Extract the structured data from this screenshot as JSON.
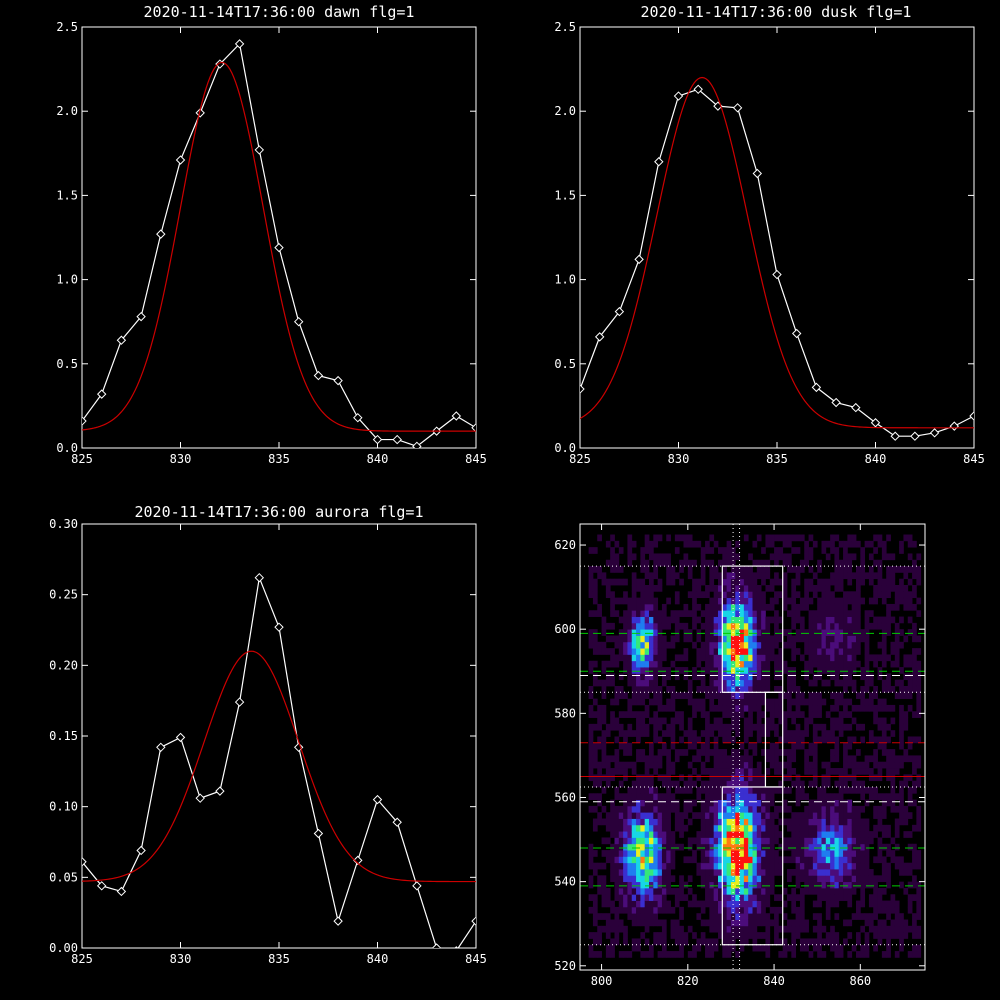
{
  "chart_data": [
    {
      "type": "line",
      "title": "2020-11-14T17:36:00 dawn flg=1",
      "xlim": [
        825,
        845
      ],
      "ylim": [
        0,
        2.5
      ],
      "xticks": [
        "825",
        "830",
        "835",
        "840",
        "845"
      ],
      "yticks": [
        "0.0",
        "0.5",
        "1.0",
        "1.5",
        "2.0",
        "2.5"
      ],
      "xticks_v": [
        825,
        830,
        835,
        840,
        845
      ],
      "yticks_v": [
        0,
        0.5,
        1.0,
        1.5,
        2.0,
        2.5
      ],
      "series": [
        {
          "color": "#ffffff",
          "markers": "diamond",
          "x": [
            825,
            826,
            827,
            828,
            829,
            830,
            831,
            832,
            833,
            834,
            835,
            836,
            837,
            838,
            839,
            840,
            841,
            842,
            843,
            844,
            845
          ],
          "y": [
            0.16,
            0.32,
            0.64,
            0.78,
            1.27,
            1.71,
            1.99,
            2.28,
            2.4,
            1.77,
            1.19,
            0.75,
            0.43,
            0.4,
            0.18,
            0.05,
            0.05,
            0.01,
            0.1,
            0.19,
            0.12
          ]
        },
        {
          "color": "#cc0000",
          "markers": "none",
          "fit": "gaussian",
          "amplitude": 2.19,
          "center": 832.1,
          "sigma": 2.1,
          "offset": 0.1
        }
      ]
    },
    {
      "type": "line",
      "title": "2020-11-14T17:36:00 dusk flg=1",
      "xlim": [
        825,
        845
      ],
      "ylim": [
        0,
        2.5
      ],
      "xticks": [
        "825",
        "830",
        "835",
        "840",
        "845"
      ],
      "yticks": [
        "0.0",
        "0.5",
        "1.0",
        "1.5",
        "2.0",
        "2.5"
      ],
      "xticks_v": [
        825,
        830,
        835,
        840,
        845
      ],
      "yticks_v": [
        0,
        0.5,
        1.0,
        1.5,
        2.0,
        2.5
      ],
      "series": [
        {
          "color": "#ffffff",
          "markers": "diamond",
          "x": [
            825,
            826,
            827,
            828,
            829,
            830,
            831,
            832,
            833,
            834,
            835,
            836,
            837,
            838,
            839,
            840,
            841,
            842,
            843,
            844,
            845
          ],
          "y": [
            0.35,
            0.66,
            0.81,
            1.12,
            1.7,
            2.09,
            2.13,
            2.03,
            2.02,
            1.63,
            1.03,
            0.68,
            0.36,
            0.27,
            0.24,
            0.15,
            0.07,
            0.07,
            0.09,
            0.13,
            0.19
          ]
        },
        {
          "color": "#cc0000",
          "markers": "none",
          "fit": "gaussian",
          "amplitude": 2.08,
          "center": 831.2,
          "sigma": 2.3,
          "offset": 0.12
        }
      ]
    },
    {
      "type": "line",
      "title": "2020-11-14T17:36:00 aurora flg=1",
      "xlim": [
        825,
        845
      ],
      "ylim": [
        0,
        0.3
      ],
      "xticks": [
        "825",
        "830",
        "835",
        "840",
        "845"
      ],
      "yticks": [
        "0.00",
        "0.05",
        "0.10",
        "0.15",
        "0.20",
        "0.25",
        "0.30"
      ],
      "xticks_v": [
        825,
        830,
        835,
        840,
        845
      ],
      "yticks_v": [
        0,
        0.05,
        0.1,
        0.15,
        0.2,
        0.25,
        0.3
      ],
      "series": [
        {
          "color": "#ffffff",
          "markers": "diamond",
          "x": [
            825,
            826,
            827,
            828,
            829,
            830,
            831,
            832,
            833,
            834,
            835,
            836,
            837,
            838,
            839,
            840,
            841,
            842,
            843,
            844,
            845
          ],
          "y": [
            0.061,
            0.044,
            0.04,
            0.069,
            0.142,
            0.149,
            0.106,
            0.111,
            0.174,
            0.262,
            0.227,
            0.142,
            0.081,
            0.019,
            0.062,
            0.105,
            0.089,
            0.044,
            0.0,
            -0.002,
            0.019
          ]
        },
        {
          "color": "#cc0000",
          "markers": "none",
          "fit": "gaussian",
          "amplitude": 0.163,
          "center": 833.6,
          "sigma": 2.4,
          "offset": 0.047
        }
      ]
    },
    {
      "type": "heatmap",
      "title": "",
      "xlim": [
        795,
        875
      ],
      "ylim": [
        519,
        625
      ],
      "xticks": [
        "800",
        "820",
        "840",
        "860"
      ],
      "yticks": [
        "520",
        "540",
        "560",
        "580",
        "600",
        "620"
      ],
      "xticks_v": [
        800,
        820,
        840,
        860
      ],
      "yticks_v": [
        520,
        540,
        560,
        580,
        600,
        620
      ],
      "colormap": [
        "#000000",
        "#2a003a",
        "#4b0c7a",
        "#3a2fd0",
        "#1f7df0",
        "#18d6e6",
        "#35e878",
        "#e8ee20",
        "#ff7a10",
        "#ff1010"
      ],
      "blobs": [
        {
          "x": 809,
          "y": 596,
          "peak": 0.72,
          "sx": 2.2,
          "sy": 5
        },
        {
          "x": 831,
          "y": 596,
          "peak": 1.0,
          "sx": 3.0,
          "sy": 7
        },
        {
          "x": 809,
          "y": 546,
          "peak": 0.78,
          "sx": 3.0,
          "sy": 7
        },
        {
          "x": 831,
          "y": 547,
          "peak": 1.0,
          "sx": 3.5,
          "sy": 9
        },
        {
          "x": 853,
          "y": 547,
          "peak": 0.45,
          "sx": 4.0,
          "sy": 6
        },
        {
          "x": 853,
          "y": 597,
          "peak": 0.18,
          "sx": 4.0,
          "sy": 5
        }
      ],
      "boxes": [
        {
          "x": [
            828,
            842
          ],
          "y": [
            585,
            615
          ]
        },
        {
          "x": [
            838,
            842
          ],
          "y": [
            562.5,
            585
          ]
        },
        {
          "x": [
            828,
            842
          ],
          "y": [
            525,
            562.5
          ]
        }
      ],
      "hlines": [
        {
          "y": 615,
          "color": "#ffffff",
          "style": "dotted"
        },
        {
          "y": 599,
          "color": "#00cc00",
          "style": "dashed"
        },
        {
          "y": 590,
          "color": "#00cc00",
          "style": "dashed"
        },
        {
          "y": 589,
          "color": "#ffffff",
          "style": "dashed"
        },
        {
          "y": 585,
          "color": "#ffffff",
          "style": "dotted"
        },
        {
          "y": 573,
          "color": "#cc0000",
          "style": "dashed"
        },
        {
          "y": 565,
          "color": "#cc0000",
          "style": "solid"
        },
        {
          "y": 562.5,
          "color": "#ffffff",
          "style": "dotted"
        },
        {
          "y": 559,
          "color": "#ffffff",
          "style": "dashed"
        },
        {
          "y": 548,
          "color": "#00cc00",
          "style": "dashed"
        },
        {
          "y": 539,
          "color": "#00cc00",
          "style": "dashed"
        },
        {
          "y": 525,
          "color": "#ffffff",
          "style": "dotted"
        }
      ],
      "vlines": [
        {
          "x": 830.5,
          "color": "#ffffff",
          "style": "dotted"
        },
        {
          "x": 832,
          "color": "#ffffff",
          "style": "dotted"
        }
      ]
    }
  ]
}
